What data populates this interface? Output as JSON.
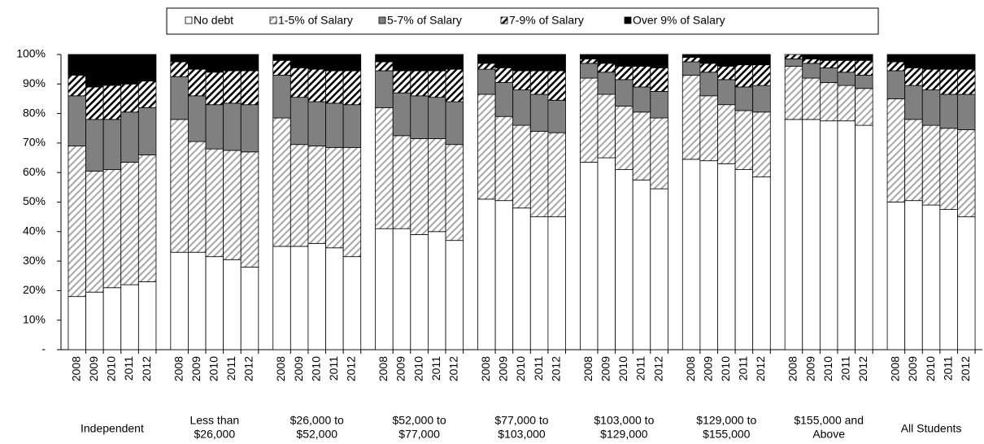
{
  "chart_data": {
    "type": "stacked_bar",
    "categories": [
      "2008",
      "2009",
      "2010",
      "2011",
      "2012",
      "2008",
      "2009",
      "2010",
      "2011",
      "2012",
      "2008",
      "2009",
      "2010",
      "2011",
      "2012",
      "2008",
      "2009",
      "2010",
      "2011",
      "2012",
      "2008",
      "2009",
      "2010",
      "2011",
      "2012",
      "2008",
      "2009",
      "2010",
      "2011",
      "2012",
      "2008",
      "2009",
      "2010",
      "2011",
      "2012",
      "2008",
      "2009",
      "2010",
      "2011",
      "2012",
      "2008",
      "2009",
      "2010",
      "2011",
      "2012"
    ],
    "groups": [
      [
        "Independent"
      ],
      [
        "Less than",
        "$26,000"
      ],
      [
        "$26,000 to",
        "$52,000"
      ],
      [
        "$52,000 to",
        "$77,000"
      ],
      [
        "$77,000 to",
        "$103,000"
      ],
      [
        "$103,000 to",
        "$129,000"
      ],
      [
        "$129,000 to",
        "$155,000"
      ],
      [
        "$155,000 and",
        "Above"
      ],
      [
        "All Students"
      ]
    ],
    "series": [
      {
        "name": "No debt",
        "color": "#ffffff",
        "pattern": "solid",
        "values": [
          18,
          19.5,
          21,
          22,
          23,
          33,
          33,
          31.5,
          30.5,
          28,
          35,
          35,
          36,
          34.5,
          31.5,
          41,
          41,
          39,
          40,
          37,
          51,
          50.5,
          48,
          45,
          45,
          63.5,
          65,
          61,
          57.5,
          54.5,
          64.5,
          64,
          63,
          61,
          58.5,
          78,
          78,
          77.5,
          77.5,
          76,
          50,
          50.5,
          49,
          47.5,
          45
        ]
      },
      {
        "name": "1-5% of Salary",
        "color": "#a6a6a6",
        "pattern": "hatch",
        "values": [
          51,
          41,
          40,
          41.5,
          43,
          45,
          37.5,
          36.5,
          37,
          39,
          43.5,
          34.5,
          33,
          34,
          37,
          41,
          31.5,
          32.5,
          31.5,
          32.5,
          35.5,
          28.5,
          28,
          29,
          28.5,
          28.5,
          21.5,
          21.5,
          23,
          24,
          28.5,
          22,
          20,
          20,
          22,
          18,
          14,
          13,
          12,
          12.5,
          35,
          27.5,
          27,
          27.5,
          29.5
        ]
      },
      {
        "name": "5-7% of Salary",
        "color": "#808080",
        "pattern": "solid",
        "values": [
          17,
          17.5,
          17,
          17,
          16,
          14.5,
          15.5,
          15,
          16,
          16,
          14.5,
          16,
          15,
          15,
          14.5,
          12.5,
          14.5,
          14.5,
          14,
          14.5,
          8.5,
          11.5,
          12,
          12.5,
          11,
          5,
          7.5,
          9,
          8.5,
          9,
          4.5,
          8,
          8.5,
          8,
          9,
          2.5,
          5,
          5,
          4.5,
          4.5,
          9.5,
          11.5,
          12,
          11.5,
          12
        ]
      },
      {
        "name": "7-9% of Salary",
        "color": "#000000",
        "pattern": "hatch",
        "values": [
          7,
          11,
          11.5,
          9.5,
          9,
          5,
          9,
          11,
          11,
          11.5,
          5,
          10,
          11,
          11,
          11.5,
          3,
          7.5,
          8.5,
          9,
          11,
          2,
          5,
          6.5,
          8,
          10,
          1.5,
          3,
          4.5,
          7,
          8,
          1.5,
          3,
          4.5,
          7.5,
          7,
          1.5,
          1.5,
          2.5,
          4,
          5,
          3,
          6,
          7,
          8.5,
          8.5
        ]
      },
      {
        "name": "Over 9% of Salary",
        "color": "#000000",
        "pattern": "solid",
        "values": [
          7,
          11,
          10.5,
          10,
          9,
          2.5,
          5,
          6,
          5.5,
          5.5,
          2,
          4.5,
          5,
          5.5,
          5.5,
          2.5,
          5.5,
          5.5,
          5.5,
          5,
          3,
          4.5,
          5.5,
          5.5,
          5.5,
          1.5,
          3,
          4,
          4,
          4.5,
          1,
          3,
          4,
          3.5,
          3.5,
          0,
          1.5,
          2,
          2,
          2,
          2.5,
          4.5,
          5,
          5,
          5
        ]
      }
    ],
    "ylim": [
      0,
      100
    ],
    "yticks": [
      {
        "value": 0,
        "label": "-"
      },
      {
        "value": 10,
        "label": "10%"
      },
      {
        "value": 20,
        "label": "20%"
      },
      {
        "value": 30,
        "label": "30%"
      },
      {
        "value": 40,
        "label": "40%"
      },
      {
        "value": 50,
        "label": "50%"
      },
      {
        "value": 60,
        "label": "60%"
      },
      {
        "value": 70,
        "label": "70%"
      },
      {
        "value": 80,
        "label": "80%"
      },
      {
        "value": 90,
        "label": "90%"
      },
      {
        "value": 100,
        "label": "100%"
      }
    ],
    "legend": "top"
  }
}
